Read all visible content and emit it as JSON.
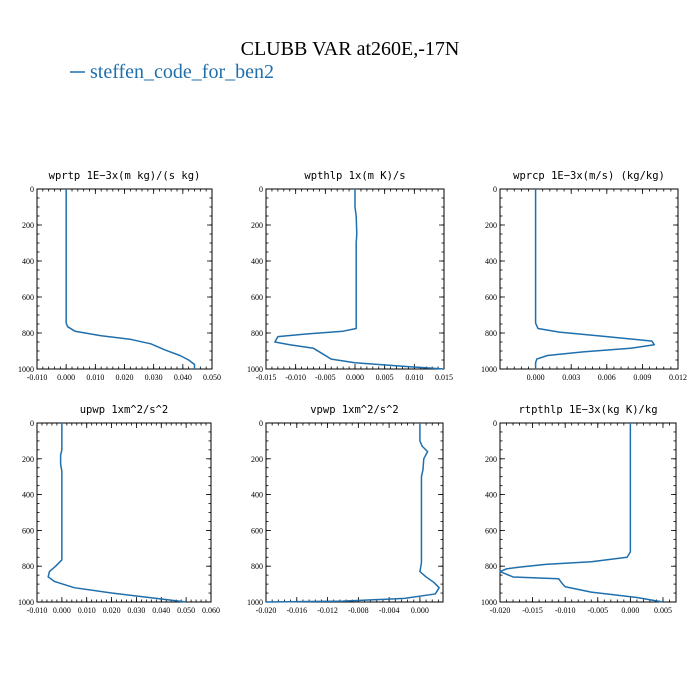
{
  "figure": {
    "title": "CLUBB VAR at260E,-17N",
    "legend_label": "steffen_code_for_ben2",
    "series_color": "#1f6fad"
  },
  "chart_data": [
    {
      "type": "line",
      "title": "wprtp  1E−3x(m kg)/(s kg)",
      "series_name": "steffen_code_for_ben2",
      "xlim": [
        -0.01,
        0.05
      ],
      "ylim": [
        1000,
        0
      ],
      "xticks": [
        -0.01,
        0.0,
        0.01,
        0.02,
        0.03,
        0.04,
        0.05
      ],
      "xtick_labels": [
        "-0.010",
        "0.000",
        "0.010",
        "0.020",
        "0.030",
        "0.040",
        "0.050"
      ],
      "yticks": [
        0,
        200,
        400,
        600,
        800,
        1000
      ],
      "ytick_labels": [
        "0",
        "200",
        "400",
        "600",
        "800",
        "1000"
      ],
      "x": [
        0.0,
        0.0,
        0.0,
        0.0,
        0.0,
        0.0005,
        0.003,
        0.012,
        0.022,
        0.029,
        0.034,
        0.039,
        0.042,
        0.044,
        0.044
      ],
      "y": [
        0,
        200,
        400,
        600,
        745,
        765,
        790,
        815,
        835,
        860,
        895,
        925,
        950,
        975,
        1000
      ]
    },
    {
      "type": "line",
      "title": "wpthlp  1x(m K)/s",
      "series_name": "steffen_code_for_ben2",
      "xlim": [
        -0.015,
        0.015
      ],
      "ylim": [
        1000,
        0
      ],
      "xticks": [
        -0.015,
        -0.01,
        -0.005,
        0.0,
        0.005,
        0.01,
        0.015
      ],
      "xtick_labels": [
        "-0.015",
        "-0.010",
        "-0.005",
        "0.000",
        "0.005",
        "0.010",
        "0.015"
      ],
      "yticks": [
        0,
        200,
        400,
        600,
        800,
        1000
      ],
      "ytick_labels": [
        "0",
        "200",
        "400",
        "600",
        "800",
        "1000"
      ],
      "x": [
        0.0,
        0.0,
        0.0002,
        0.0003,
        0.0002,
        0.0002,
        0.0002,
        0.0002,
        -0.002,
        -0.008,
        -0.013,
        -0.0135,
        -0.011,
        -0.007,
        -0.0055,
        -0.004,
        0.0,
        0.008,
        0.015
      ],
      "y": [
        0,
        100,
        150,
        250,
        300,
        500,
        700,
        775,
        790,
        805,
        820,
        850,
        865,
        885,
        915,
        945,
        965,
        985,
        1000
      ]
    },
    {
      "type": "line",
      "title": "wprcp  1E−3x(m/s) (kg/kg)",
      "series_name": "steffen_code_for_ben2",
      "xlim": [
        -0.003,
        0.012
      ],
      "ylim": [
        1000,
        0
      ],
      "xticks": [
        0.0,
        0.003,
        0.006,
        0.009,
        0.012
      ],
      "xtick_labels": [
        "0.000",
        "0.003",
        "0.006",
        "0.009",
        "0.012"
      ],
      "yticks": [
        0,
        200,
        400,
        600,
        800,
        1000
      ],
      "ytick_labels": [
        "0",
        "200",
        "400",
        "600",
        "800",
        "1000"
      ],
      "x": [
        0.0,
        0.0,
        0.0,
        0.0,
        0.0002,
        0.002,
        0.006,
        0.0098,
        0.01,
        0.008,
        0.004,
        0.001,
        0.0001,
        0.0,
        0.0
      ],
      "y": [
        0,
        300,
        600,
        745,
        775,
        795,
        820,
        845,
        865,
        885,
        905,
        925,
        945,
        965,
        1000
      ]
    },
    {
      "type": "line",
      "title": "upwp  1xm^2/s^2",
      "series_name": "steffen_code_for_ben2",
      "xlim": [
        -0.01,
        0.06
      ],
      "ylim": [
        1000,
        0
      ],
      "xticks": [
        -0.01,
        0.0,
        0.01,
        0.02,
        0.03,
        0.04,
        0.05,
        0.06
      ],
      "xtick_labels": [
        "-0.010",
        "0.000",
        "0.010",
        "0.020",
        "0.030",
        "0.040",
        "0.050",
        "0.060"
      ],
      "yticks": [
        0,
        200,
        400,
        600,
        800,
        1000
      ],
      "ytick_labels": [
        "0",
        "200",
        "400",
        "600",
        "800",
        "1000"
      ],
      "x": [
        0.0,
        0.0,
        -0.0005,
        -0.0005,
        0.0,
        0.0,
        0.0,
        0.0,
        -0.0025,
        -0.005,
        -0.0055,
        -0.003,
        0.005,
        0.02,
        0.038,
        0.05
      ],
      "y": [
        0,
        150,
        180,
        230,
        270,
        500,
        700,
        765,
        800,
        830,
        860,
        885,
        920,
        950,
        980,
        1000
      ]
    },
    {
      "type": "line",
      "title": "vpwp  1xm^2/s^2",
      "series_name": "steffen_code_for_ben2",
      "xlim": [
        -0.02,
        0.003
      ],
      "ylim": [
        1000,
        0
      ],
      "xticks": [
        -0.02,
        -0.016,
        -0.012,
        -0.008,
        -0.004,
        0.0
      ],
      "xtick_labels": [
        "-0.020",
        "-0.016",
        "-0.012",
        "-0.008",
        "-0.004",
        "0.000"
      ],
      "yticks": [
        0,
        200,
        400,
        600,
        800,
        1000
      ],
      "ytick_labels": [
        "0",
        "200",
        "400",
        "600",
        "800",
        "1000"
      ],
      "x": [
        0.0,
        0.0,
        0.0003,
        0.001,
        0.0005,
        0.0004,
        0.0002,
        0.0002,
        0.0002,
        0.0,
        0.0008,
        0.0018,
        0.0025,
        0.002,
        -0.002,
        -0.01,
        -0.02
      ],
      "y": [
        0,
        100,
        130,
        160,
        200,
        260,
        300,
        600,
        780,
        830,
        860,
        890,
        920,
        955,
        980,
        995,
        1000
      ]
    },
    {
      "type": "line",
      "title": "rtpthlp  1E−3x(kg K)/kg",
      "series_name": "steffen_code_for_ben2",
      "xlim": [
        -0.02,
        0.007
      ],
      "ylim": [
        1000,
        0
      ],
      "xticks": [
        -0.02,
        -0.015,
        -0.01,
        -0.005,
        0.0,
        0.005
      ],
      "xtick_labels": [
        "-0.020",
        "-0.015",
        "-0.010",
        "-0.005",
        "0.000",
        "0.005"
      ],
      "yticks": [
        0,
        200,
        400,
        600,
        800,
        1000
      ],
      "ytick_labels": [
        "0",
        "200",
        "400",
        "600",
        "800",
        "1000"
      ],
      "x": [
        0.0,
        0.0,
        0.0,
        0.0,
        -0.0005,
        -0.006,
        -0.013,
        -0.017,
        -0.019,
        -0.02,
        -0.018,
        -0.011,
        -0.0105,
        -0.01,
        -0.006,
        0.001,
        0.005
      ],
      "y": [
        0,
        300,
        600,
        720,
        750,
        775,
        790,
        805,
        815,
        830,
        860,
        870,
        895,
        915,
        945,
        975,
        1000
      ]
    }
  ]
}
